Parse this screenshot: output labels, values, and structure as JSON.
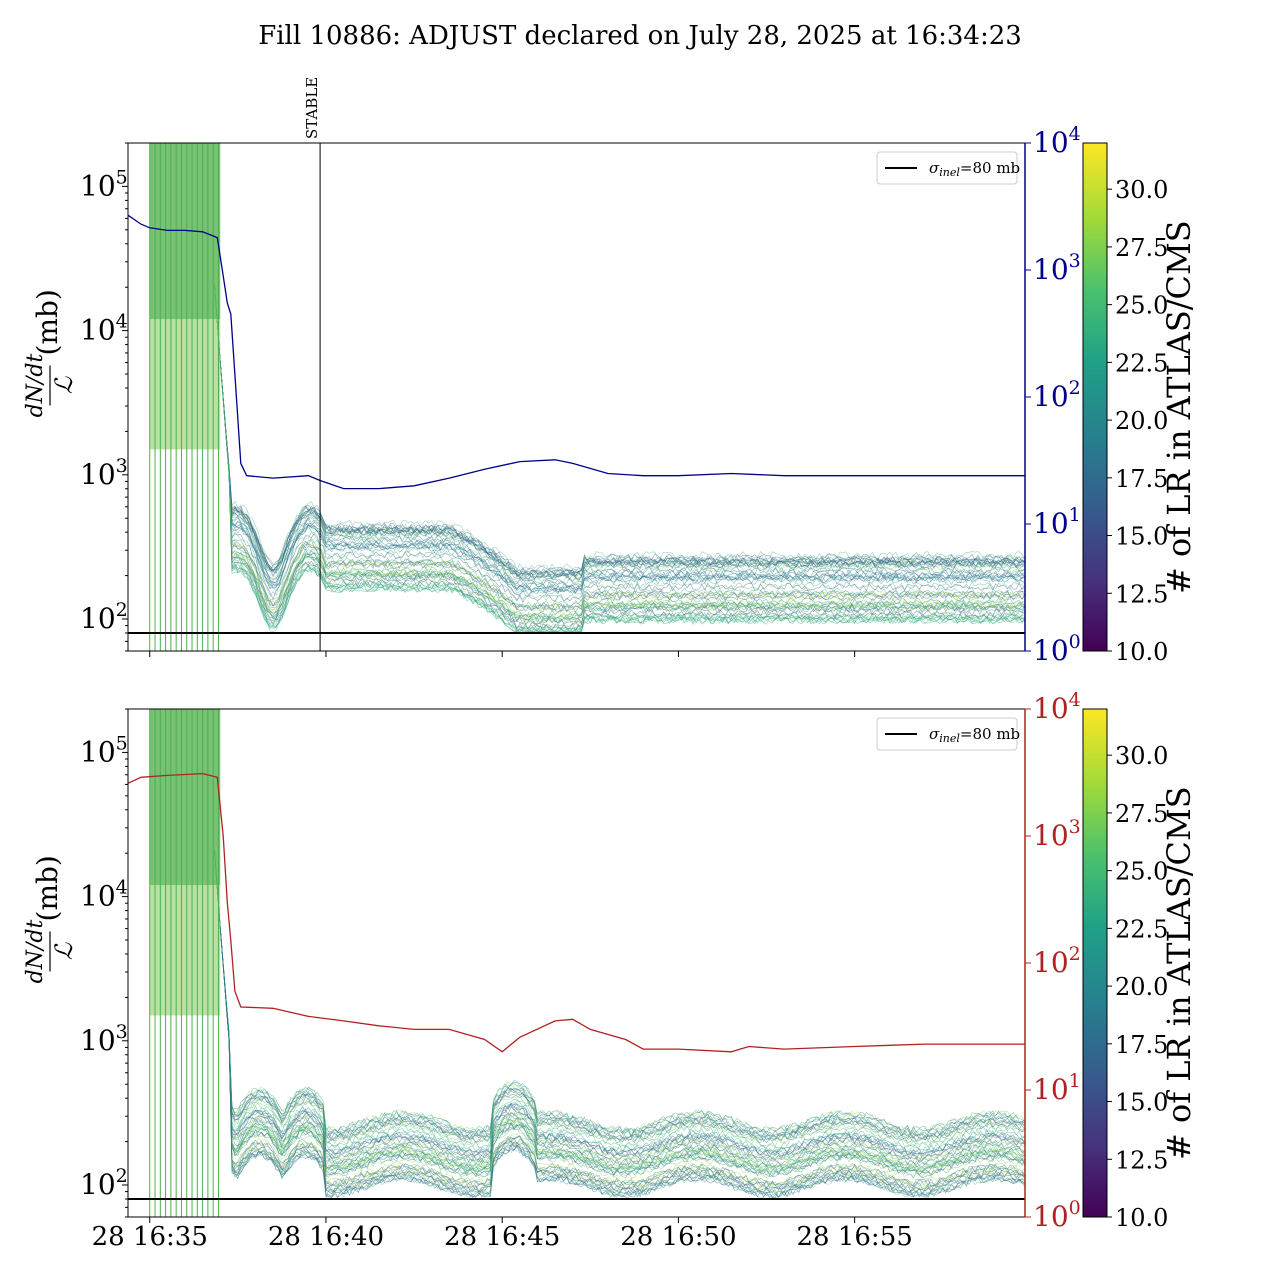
{
  "figure": {
    "title": "Fill 10886: ADJUST declared on July 28, 2025 at 16:34:23"
  },
  "colors": {
    "blue_line": "#00008b",
    "red_line": "#b22222",
    "inel_line": "#000000",
    "stable_line": "#000000"
  },
  "chart_data": [
    {
      "type": "line",
      "panel": "top",
      "ylabel_num": "dN/dt",
      "ylabel_den": "ℒ",
      "ylabel_unit": "(mb)",
      "yscale": "log",
      "ylim": [
        60,
        200000
      ],
      "y_ticks": [
        {
          "base": "10",
          "exp": "2"
        },
        {
          "base": "10",
          "exp": "3"
        },
        {
          "base": "10",
          "exp": "4"
        },
        {
          "base": "10",
          "exp": "5"
        }
      ],
      "x_range": [
        "16:34:23",
        "16:59:50"
      ],
      "x_ticks": [],
      "right_axis": {
        "yscale": "log",
        "ylim": [
          1,
          10000
        ],
        "color": "#00008b",
        "ticks": [
          {
            "base": "10",
            "exp": "0"
          },
          {
            "base": "10",
            "exp": "1"
          },
          {
            "base": "10",
            "exp": "2"
          },
          {
            "base": "10",
            "exp": "3"
          },
          {
            "base": "10",
            "exp": "4"
          }
        ]
      },
      "annotation": {
        "label": "STABLE",
        "time": "16:39:50"
      },
      "legend": {
        "label_sigma": "σ",
        "label_sub": "inel",
        "label_rest": "=80 mb",
        "position": "top-right"
      },
      "hline": 80,
      "colorbar": {
        "label": "# of LR in ATLAS/CMS",
        "range": [
          10,
          32
        ],
        "ticks": [
          "10.0",
          "12.5",
          "15.0",
          "17.5",
          "20.0",
          "22.5",
          "25.0",
          "27.5",
          "30.0"
        ]
      },
      "series_right": {
        "points": [
          [
            "16:34:23",
            2700
          ],
          [
            "16:34:45",
            2300
          ],
          [
            "16:35:00",
            2150
          ],
          [
            "16:35:30",
            2050
          ],
          [
            "16:36:00",
            2050
          ],
          [
            "16:36:30",
            2000
          ],
          [
            "16:36:55",
            1800
          ],
          [
            "16:37:05",
            900
          ],
          [
            "16:37:12",
            550
          ],
          [
            "16:37:18",
            450
          ],
          [
            "16:37:25",
            150
          ],
          [
            "16:37:35",
            30
          ],
          [
            "16:37:45",
            24
          ],
          [
            "16:38:30",
            23
          ],
          [
            "16:39:30",
            24
          ],
          [
            "16:39:50",
            22
          ],
          [
            "16:40:30",
            19
          ],
          [
            "16:41:30",
            19
          ],
          [
            "16:42:30",
            20
          ],
          [
            "16:43:30",
            23
          ],
          [
            "16:44:30",
            27
          ],
          [
            "16:45:30",
            31
          ],
          [
            "16:46:30",
            32
          ],
          [
            "16:47:00",
            30
          ],
          [
            "16:48:00",
            25
          ],
          [
            "16:49:00",
            24
          ],
          [
            "16:50:00",
            24
          ],
          [
            "16:51:30",
            25
          ],
          [
            "16:53:00",
            24
          ],
          [
            "16:55:00",
            24
          ],
          [
            "16:57:00",
            24
          ],
          [
            "16:59:50",
            24
          ]
        ]
      }
    },
    {
      "type": "line",
      "panel": "bottom",
      "ylabel_num": "dN/dt",
      "ylabel_den": "ℒ",
      "ylabel_unit": "(mb)",
      "yscale": "log",
      "ylim": [
        60,
        200000
      ],
      "y_ticks": [
        {
          "base": "10",
          "exp": "2"
        },
        {
          "base": "10",
          "exp": "3"
        },
        {
          "base": "10",
          "exp": "4"
        },
        {
          "base": "10",
          "exp": "5"
        }
      ],
      "x_range": [
        "16:34:23",
        "16:59:50"
      ],
      "x_ticks": [
        {
          "time": "16:35:00",
          "label": "28 16:35"
        },
        {
          "time": "16:40:00",
          "label": "28 16:40"
        },
        {
          "time": "16:45:00",
          "label": "28 16:45"
        },
        {
          "time": "16:50:00",
          "label": "28 16:50"
        },
        {
          "time": "16:55:00",
          "label": "28 16:55"
        }
      ],
      "right_axis": {
        "yscale": "log",
        "ylim": [
          1,
          10000
        ],
        "color": "#b22222",
        "ticks": [
          {
            "base": "10",
            "exp": "0"
          },
          {
            "base": "10",
            "exp": "1"
          },
          {
            "base": "10",
            "exp": "2"
          },
          {
            "base": "10",
            "exp": "3"
          },
          {
            "base": "10",
            "exp": "4"
          }
        ]
      },
      "legend": {
        "label_sigma": "σ",
        "label_sub": "inel",
        "label_rest": "=80 mb",
        "position": "top-right"
      },
      "hline": 80,
      "colorbar": {
        "label": "# of LR in ATLAS/CMS",
        "range": [
          10,
          32
        ],
        "ticks": [
          "10.0",
          "12.5",
          "15.0",
          "17.5",
          "20.0",
          "22.5",
          "25.0",
          "27.5",
          "30.0"
        ]
      },
      "series_right": {
        "points": [
          [
            "16:34:23",
            2600
          ],
          [
            "16:34:45",
            2900
          ],
          [
            "16:35:30",
            3000
          ],
          [
            "16:36:30",
            3100
          ],
          [
            "16:36:55",
            2900
          ],
          [
            "16:37:05",
            1000
          ],
          [
            "16:37:12",
            300
          ],
          [
            "16:37:18",
            150
          ],
          [
            "16:37:25",
            60
          ],
          [
            "16:37:35",
            45
          ],
          [
            "16:38:30",
            44
          ],
          [
            "16:39:30",
            38
          ],
          [
            "16:40:30",
            35
          ],
          [
            "16:41:30",
            32
          ],
          [
            "16:42:30",
            30
          ],
          [
            "16:43:30",
            30
          ],
          [
            "16:44:30",
            25
          ],
          [
            "16:45:00",
            20
          ],
          [
            "16:45:30",
            26
          ],
          [
            "16:46:30",
            35
          ],
          [
            "16:47:00",
            36
          ],
          [
            "16:47:30",
            30
          ],
          [
            "16:48:30",
            25
          ],
          [
            "16:49:00",
            21
          ],
          [
            "16:50:00",
            21
          ],
          [
            "16:51:30",
            20
          ],
          [
            "16:52:00",
            22
          ],
          [
            "16:53:00",
            21
          ],
          [
            "16:55:00",
            22
          ],
          [
            "16:57:00",
            23
          ],
          [
            "16:59:50",
            23
          ]
        ]
      }
    }
  ]
}
